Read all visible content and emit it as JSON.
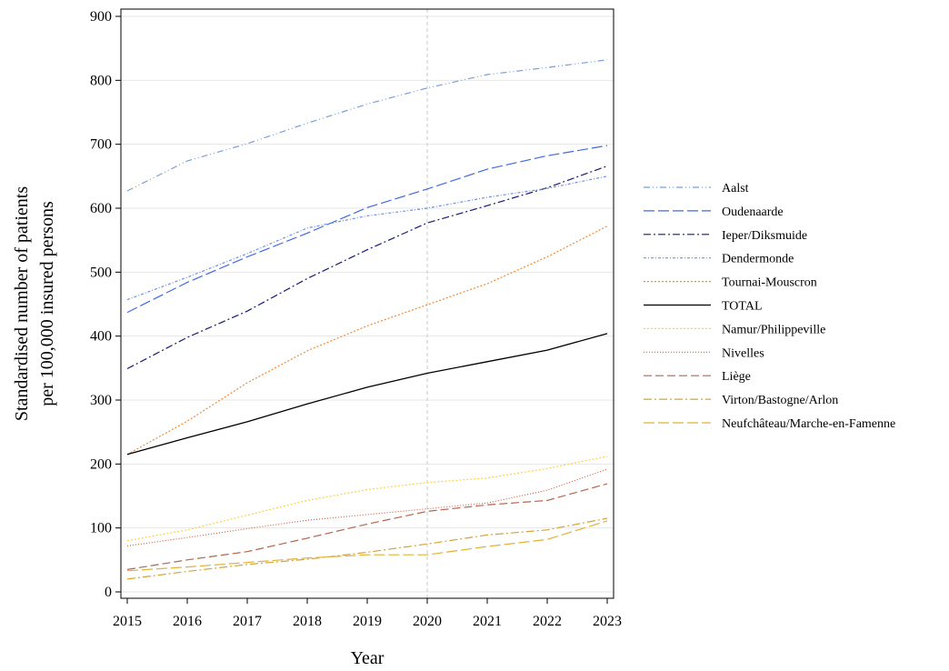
{
  "chart_data": {
    "type": "line",
    "title": "",
    "xlabel": "Year",
    "ylabel_lines": [
      "Standardised number of patients",
      "per 100,000 insured persons"
    ],
    "x": [
      2015,
      2016,
      2017,
      2018,
      2019,
      2020,
      2021,
      2022,
      2023
    ],
    "xlim": [
      2015,
      2023
    ],
    "ylim": [
      0,
      900
    ],
    "yticks": [
      0,
      100,
      200,
      300,
      400,
      500,
      600,
      700,
      800,
      900
    ],
    "grid": "horizontal",
    "reference_line_x": 2020,
    "legend_position": "right",
    "series": [
      {
        "name": "Aalst",
        "color": "#7b9fd6",
        "dash": "7,3,1,3,1,3",
        "values": [
          627,
          674,
          701,
          733,
          763,
          788,
          809,
          820,
          832
        ]
      },
      {
        "name": "Oudenaarde",
        "color": "#4169e1",
        "dash": "12,4",
        "values": [
          437,
          484,
          524,
          561,
          601,
          630,
          661,
          682,
          698
        ]
      },
      {
        "name": "Ieper/Diksmuide",
        "color": "#191970",
        "dash": "8,3,2,3",
        "values": [
          349,
          398,
          439,
          490,
          535,
          577,
          604,
          632,
          666
        ]
      },
      {
        "name": "Dendermonde",
        "color": "#6f8fe0",
        "dash": "3,2,1,2",
        "values": [
          457,
          492,
          529,
          569,
          588,
          600,
          617,
          631,
          650
        ]
      },
      {
        "name": "Tournai-Mouscron",
        "color": "#f08a3c",
        "dash": "2,2",
        "values": [
          215,
          267,
          327,
          377,
          416,
          449,
          482,
          524,
          572
        ]
      },
      {
        "name": "TOTAL",
        "color": "#000000",
        "dash": "",
        "values": [
          215,
          241,
          266,
          294,
          320,
          342,
          360,
          378,
          404
        ]
      },
      {
        "name": "Namur/Philippeville",
        "color": "#ffd24d",
        "dash": "2,2",
        "values": [
          80,
          97,
          120,
          143,
          160,
          171,
          178,
          193,
          212
        ]
      },
      {
        "name": "Nivelles",
        "color": "#d8604a",
        "dash": "1,2",
        "values": [
          72,
          85,
          99,
          112,
          121,
          130,
          139,
          159,
          192
        ]
      },
      {
        "name": "Liège",
        "color": "#b5654f",
        "dash": "9,4",
        "values": [
          35,
          50,
          63,
          84,
          106,
          126,
          136,
          143,
          169
        ]
      },
      {
        "name": "Virton/Bastogne/Arlon",
        "color": "#d4a43a",
        "dash": "9,3,2,3",
        "values": [
          20,
          32,
          43,
          51,
          62,
          75,
          89,
          97,
          115
        ]
      },
      {
        "name": "Neufchâteau/Marche-en-Famenne",
        "color": "#e0b23c",
        "dash": "12,4",
        "values": [
          33,
          39,
          46,
          53,
          58,
          58,
          71,
          82,
          111
        ]
      }
    ]
  }
}
